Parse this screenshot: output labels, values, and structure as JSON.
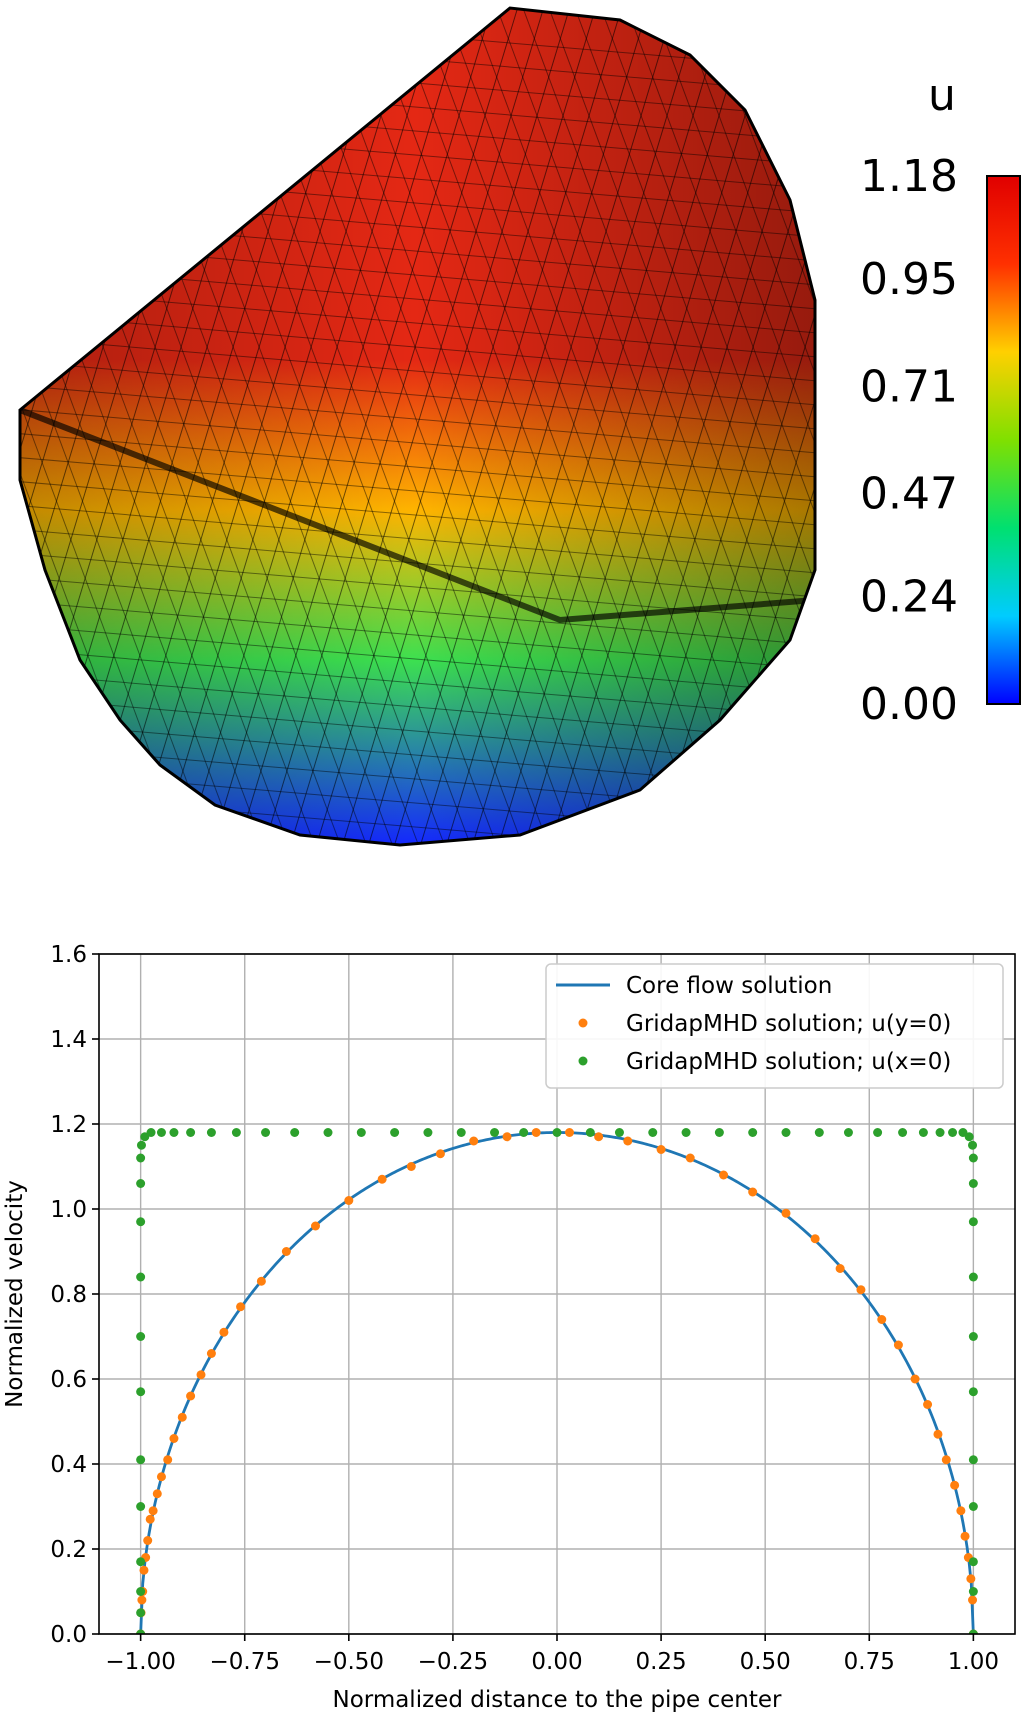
{
  "colorbar": {
    "title": "u",
    "ticks": [
      "1.18",
      "0.95",
      "0.71",
      "0.47",
      "0.24",
      "0.00"
    ],
    "range": [
      0.0,
      1.18
    ],
    "colormap": [
      "#0000ff",
      "#00ccff",
      "#00e070",
      "#80e000",
      "#ffd000",
      "#ff3000",
      "#e00000"
    ]
  },
  "mesh_colors": {
    "top": "#e42814",
    "mid": "#ffb400",
    "lower": "#3ce050",
    "bottom": "#1428ff",
    "edge": "#000000"
  },
  "chart_data": {
    "type": "scatter",
    "title": "",
    "xlabel": "Normalized distance to the pipe center",
    "ylabel": "Normalized velocity",
    "xlim": [
      -1.1,
      1.1
    ],
    "ylim": [
      0.0,
      1.6
    ],
    "xticks": [
      "−1.00",
      "−0.75",
      "−0.50",
      "−0.25",
      "0.00",
      "0.25",
      "0.50",
      "0.75",
      "1.00"
    ],
    "yticks": [
      "0.0",
      "0.2",
      "0.4",
      "0.6",
      "0.8",
      "1.0",
      "1.2",
      "1.4",
      "1.6"
    ],
    "xtick_values": [
      -1.0,
      -0.75,
      -0.5,
      -0.25,
      0.0,
      0.25,
      0.5,
      0.75,
      1.0
    ],
    "ytick_values": [
      0.0,
      0.2,
      0.4,
      0.6,
      0.8,
      1.0,
      1.2,
      1.4,
      1.6
    ],
    "grid": true,
    "legend_position": "top-right",
    "series": [
      {
        "name": "Core flow solution",
        "kind": "line",
        "color": "#1f77b4",
        "formula": "1.18*sqrt(1-x^2)",
        "peak": 1.18,
        "x_range": [
          -1.0,
          1.0
        ]
      },
      {
        "name": "GridapMHD solution; u(y=0)",
        "kind": "points",
        "color": "#ff7f0e",
        "x": [
          -1.0,
          -0.999,
          -0.997,
          -0.995,
          -0.992,
          -0.988,
          -0.983,
          -0.977,
          -0.97,
          -0.96,
          -0.95,
          -0.935,
          -0.92,
          -0.9,
          -0.88,
          -0.855,
          -0.83,
          -0.8,
          -0.76,
          -0.71,
          -0.65,
          -0.58,
          -0.5,
          -0.42,
          -0.35,
          -0.28,
          -0.2,
          -0.12,
          -0.05,
          0.03,
          0.1,
          0.17,
          0.25,
          0.32,
          0.4,
          0.47,
          0.55,
          0.62,
          0.68,
          0.73,
          0.78,
          0.82,
          0.86,
          0.89,
          0.915,
          0.935,
          0.955,
          0.97,
          0.98,
          0.988,
          0.994,
          0.998,
          1.0
        ],
        "y": [
          0.0,
          0.05,
          0.08,
          0.1,
          0.15,
          0.18,
          0.22,
          0.27,
          0.29,
          0.33,
          0.37,
          0.41,
          0.46,
          0.51,
          0.56,
          0.61,
          0.66,
          0.71,
          0.77,
          0.83,
          0.9,
          0.96,
          1.02,
          1.07,
          1.1,
          1.13,
          1.16,
          1.17,
          1.18,
          1.18,
          1.17,
          1.16,
          1.14,
          1.12,
          1.08,
          1.04,
          0.99,
          0.93,
          0.86,
          0.81,
          0.74,
          0.68,
          0.6,
          0.54,
          0.47,
          0.41,
          0.35,
          0.29,
          0.23,
          0.18,
          0.13,
          0.08,
          0.0
        ]
      },
      {
        "name": "GridapMHD solution; u(x=0)",
        "kind": "points",
        "color": "#2ca02c",
        "x": [
          -1.0,
          -1.0,
          -1.0,
          -1.0,
          -1.0,
          -1.0,
          -1.0,
          -1.0,
          -1.0,
          -1.0,
          -1.0,
          -1.0,
          -0.998,
          -0.99,
          -0.975,
          -0.95,
          -0.92,
          -0.88,
          -0.83,
          -0.77,
          -0.7,
          -0.63,
          -0.55,
          -0.47,
          -0.39,
          -0.31,
          -0.23,
          -0.15,
          -0.08,
          0.0,
          0.08,
          0.15,
          0.23,
          0.31,
          0.39,
          0.47,
          0.55,
          0.63,
          0.7,
          0.77,
          0.83,
          0.88,
          0.92,
          0.95,
          0.975,
          0.99,
          0.998,
          1.0,
          1.0,
          1.0,
          1.0,
          1.0,
          1.0,
          1.0,
          1.0,
          1.0,
          1.0,
          1.0
        ],
        "y": [
          0.0,
          0.05,
          0.1,
          0.17,
          0.3,
          0.41,
          0.57,
          0.7,
          0.84,
          0.97,
          1.06,
          1.12,
          1.15,
          1.17,
          1.18,
          1.18,
          1.18,
          1.18,
          1.18,
          1.18,
          1.18,
          1.18,
          1.18,
          1.18,
          1.18,
          1.18,
          1.18,
          1.18,
          1.18,
          1.18,
          1.18,
          1.18,
          1.18,
          1.18,
          1.18,
          1.18,
          1.18,
          1.18,
          1.18,
          1.18,
          1.18,
          1.18,
          1.18,
          1.18,
          1.18,
          1.17,
          1.15,
          1.12,
          1.06,
          0.97,
          0.84,
          0.7,
          0.57,
          0.41,
          0.3,
          0.17,
          0.1,
          0.0
        ]
      }
    ]
  }
}
